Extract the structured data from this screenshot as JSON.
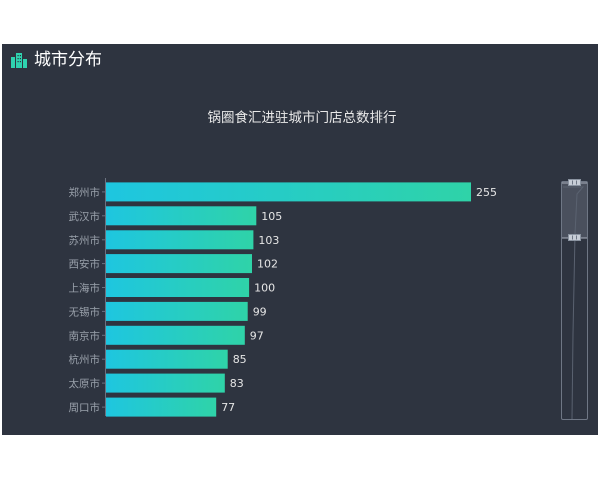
{
  "panel": {
    "title": "城市分布",
    "icon": "building-icon",
    "accent_color": "#2fd3b0",
    "background_color": "#2e3440"
  },
  "chart_data": {
    "type": "bar",
    "orientation": "horizontal",
    "title": "锅圈食汇进驻城市门店总数排行",
    "categories": [
      "郑州市",
      "武汉市",
      "苏州市",
      "西安市",
      "上海市",
      "无锡市",
      "南京市",
      "杭州市",
      "太原市",
      "周口市"
    ],
    "values": [
      255,
      105,
      103,
      102,
      100,
      99,
      97,
      85,
      83,
      77
    ],
    "xlabel": "",
    "ylabel": "",
    "xlim": [
      0,
      260
    ],
    "grid": false,
    "legend": "none",
    "data_labels": true,
    "bar_gradient": [
      "#1ec6e0",
      "#2fd3a8"
    ],
    "data_zoom": {
      "type": "slider",
      "orientation": "vertical",
      "range_percent": [
        0,
        25
      ]
    }
  }
}
